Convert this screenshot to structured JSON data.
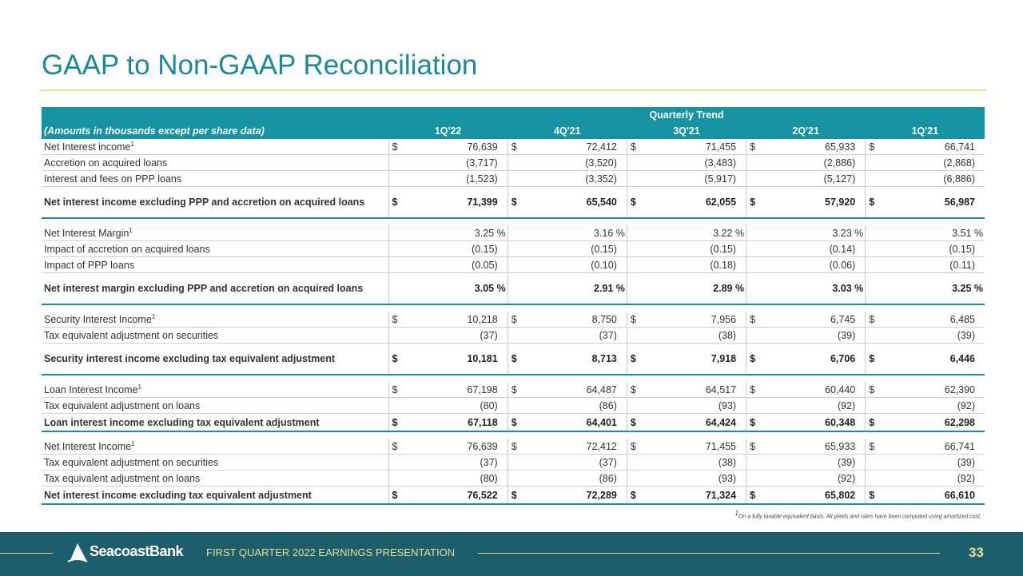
{
  "title": "GAAP to Non-GAAP Reconciliation",
  "header": {
    "group": "Quarterly Trend",
    "label": "(Amounts in thousands except per share data)",
    "quarters": [
      "1Q'22",
      "4Q'21",
      "3Q'21",
      "2Q'21",
      "1Q'21"
    ]
  },
  "rows": [
    {
      "label": "Net Interest income",
      "sup": "1",
      "dollar": true,
      "values": [
        "76,639",
        "72,412",
        "71,455",
        "65,933",
        "66,741"
      ]
    },
    {
      "label": "Accretion on acquired loans",
      "values": [
        "(3,717)",
        "(3,520)",
        "(3,483)",
        "(2,886)",
        "(2,868)"
      ]
    },
    {
      "label": "Interest and fees on PPP loans",
      "values": [
        "(1,523)",
        "(3,352)",
        "(5,917)",
        "(5,127)",
        "(6,886)"
      ]
    },
    {
      "label": "Net interest income excluding PPP and accretion on acquired loans",
      "bold": true,
      "dollar": true,
      "values": [
        "71,399",
        "65,540",
        "62,055",
        "57,920",
        "56,987"
      ]
    },
    {
      "label": "Net Interest Margin",
      "sup": "1",
      "pct": true,
      "values": [
        "3.25 %",
        "3.16 %",
        "3.22 %",
        "3.23 %",
        "3.51 %"
      ]
    },
    {
      "label": "Impact of accretion on acquired loans",
      "values": [
        "(0.15)",
        "(0.15)",
        "(0.15)",
        "(0.14)",
        "(0.15)"
      ]
    },
    {
      "label": "Impact of PPP loans",
      "values": [
        "(0.05)",
        "(0.10)",
        "(0.18)",
        "(0.06)",
        "(0.11)"
      ]
    },
    {
      "label": "Net interest margin excluding PPP and accretion on acquired loans",
      "bold": true,
      "pct": true,
      "values": [
        "3.05 %",
        "2.91 %",
        "2.89 %",
        "3.03 %",
        "3.25 %"
      ]
    },
    {
      "label": "Security Interest Income",
      "sup": "1",
      "dollar": true,
      "values": [
        "10,218",
        "8,750",
        "7,956",
        "6,745",
        "6,485"
      ]
    },
    {
      "label": "Tax equivalent adjustment on securities",
      "values": [
        "(37)",
        "(37)",
        "(38)",
        "(39)",
        "(39)"
      ]
    },
    {
      "label": "Security interest income excluding tax equivalent adjustment",
      "bold": true,
      "dollar": true,
      "values": [
        "10,181",
        "8,713",
        "7,918",
        "6,706",
        "6,446"
      ]
    },
    {
      "label": "Loan Interest Income",
      "sup": "1",
      "dollar": true,
      "values": [
        "67,198",
        "64,487",
        "64,517",
        "60,440",
        "62,390"
      ]
    },
    {
      "label": "Tax equivalent adjustment on loans",
      "values": [
        "(80)",
        "(86)",
        "(93)",
        "(92)",
        "(92)"
      ]
    },
    {
      "label": "Loan interest income excluding tax equivalent adjustment",
      "boldThin": true,
      "dollar": true,
      "values": [
        "67,118",
        "64,401",
        "64,424",
        "60,348",
        "62,298"
      ]
    },
    {
      "label": "Net Interest Income",
      "sup": "1",
      "dollar": true,
      "values": [
        "76,639",
        "72,412",
        "71,455",
        "65,933",
        "66,741"
      ]
    },
    {
      "label": "Tax equivalent adjustment on securities",
      "values": [
        "(37)",
        "(37)",
        "(38)",
        "(39)",
        "(39)"
      ]
    },
    {
      "label": "Tax equivalent adjustment on loans",
      "values": [
        "(80)",
        "(86)",
        "(93)",
        "(92)",
        "(92)"
      ]
    },
    {
      "label": "Net interest income excluding tax equivalent adjustment",
      "boldThin": true,
      "dollar": true,
      "values": [
        "76,522",
        "72,289",
        "71,324",
        "65,802",
        "66,610"
      ]
    }
  ],
  "footnote_sup": "1",
  "footnote": "On a fully taxable equivalent basis. All yields and rates have been computed using amortized cost.",
  "footer": {
    "logo_text": "SeacoastBank",
    "caption": "FIRST QUARTER 2022 EARNINGS PRESENTATION",
    "page": "33"
  },
  "colors": {
    "accent": "#1593a3",
    "footer_bg": "#1c5e6c",
    "gold": "#e6df8f"
  }
}
